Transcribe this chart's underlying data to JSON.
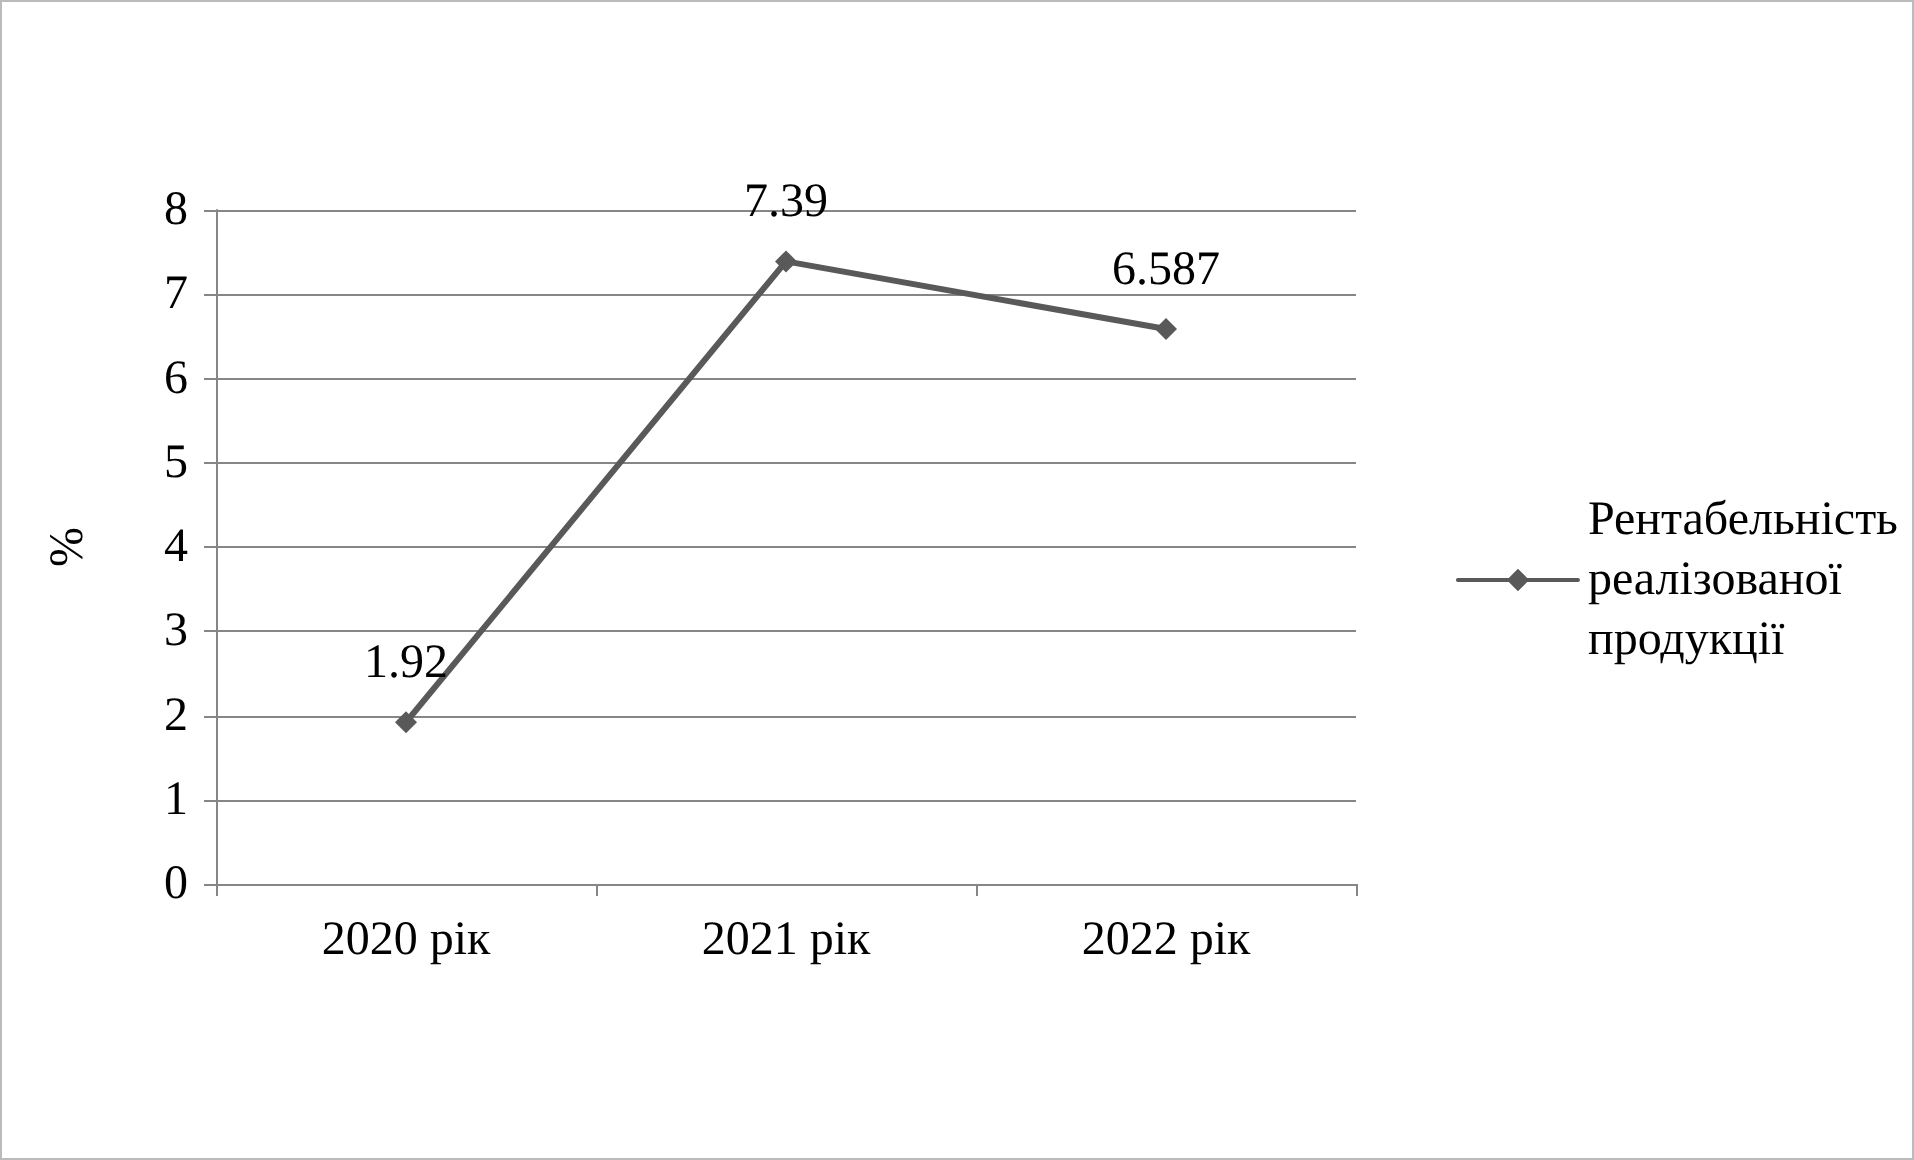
{
  "chart_data": {
    "type": "line",
    "ylabel": "%",
    "categories": [
      "2020 рік",
      "2021 рік",
      "2022 рік"
    ],
    "series": [
      {
        "name": "Рентабельність реалізованої продукції",
        "color": "#595959",
        "values": [
          1.92,
          7.39,
          6.587
        ]
      }
    ],
    "ylim": [
      0,
      8
    ],
    "yticks": [
      0,
      1,
      2,
      3,
      4,
      5,
      6,
      7,
      8
    ],
    "grid": "y",
    "legend": "right",
    "marker": "diamond",
    "line_style": "solid",
    "data_labels": true
  }
}
